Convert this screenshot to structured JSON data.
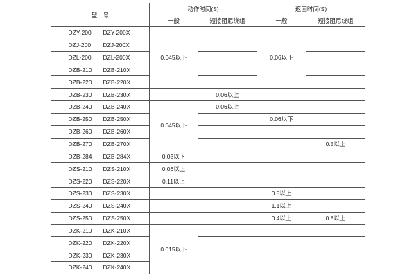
{
  "header": {
    "model": "型　号",
    "action_time": "动作时间(S)",
    "return_time": "返回时间(S)",
    "general": "一般",
    "short_winding": "短接阻尼绕组"
  },
  "rows": [
    {
      "model_a": "DZY-200",
      "model_b": "DZY-200X",
      "action_general": "0.045以下",
      "action_short": "",
      "return_general": "0.06以下",
      "return_short": ""
    },
    {
      "model_a": "DZJ-200",
      "model_b": "DZJ-200X",
      "action_short": "",
      "return_short": ""
    },
    {
      "model_a": "DZL-200",
      "model_b": "DZL-200X",
      "action_short": "",
      "return_short": ""
    },
    {
      "model_a": "DZB-210",
      "model_b": "DZB-210X",
      "action_short": "",
      "return_short": ""
    },
    {
      "model_a": "DZB-220",
      "model_b": "DZB-220X",
      "action_short": "",
      "return_short": ""
    },
    {
      "model_a": "DZB-230",
      "model_b": "DZB-230X",
      "action_general": "",
      "action_short": "0.06以上",
      "return_general": "",
      "return_short": ""
    },
    {
      "model_a": "DZB-240",
      "model_b": "DZB-240X",
      "action_general": "0.045以下",
      "action_short": "0.06以上",
      "return_general": "",
      "return_short": ""
    },
    {
      "model_a": "DZB-250",
      "model_b": "DZB-250X",
      "action_short": "",
      "return_general": "0.06以下",
      "return_short": ""
    },
    {
      "model_a": "DZB-260",
      "model_b": "DZB-260X",
      "action_short": "",
      "return_general": "",
      "return_short": ""
    },
    {
      "model_a": "DZB-270",
      "model_b": "DZB-270X",
      "action_short": "",
      "return_general": "",
      "return_short": "0.5以上"
    },
    {
      "model_a": "DZB-284",
      "model_b": "DZB-284X",
      "action_general": "0.03以下",
      "action_short": "",
      "return_general": "",
      "return_short": ""
    },
    {
      "model_a": "DZS-210",
      "model_b": "DZS-210X",
      "action_general": "0.06以上",
      "action_short": "",
      "return_general": "",
      "return_short": ""
    },
    {
      "model_a": "DZS-220",
      "model_b": "DZS-220X",
      "action_general": "0.11以上",
      "action_short": "",
      "return_general": "",
      "return_short": ""
    },
    {
      "model_a": "DZS-230",
      "model_b": "DZS-230X",
      "action_general": "",
      "action_short": "",
      "return_general": "0.5以上",
      "return_short": ""
    },
    {
      "model_a": "DZS-240",
      "model_b": "DZS-240X",
      "action_general": "",
      "action_short": "",
      "return_general": "1.1以上",
      "return_short": ""
    },
    {
      "model_a": "DZS-250",
      "model_b": "DZS-250X",
      "action_general": "",
      "action_short": "",
      "return_general": "0.4以上",
      "return_short": "0.8以上"
    },
    {
      "model_a": "DZK-210",
      "model_b": "DZK-210X",
      "action_general": "0.015以下",
      "action_short": "",
      "return_general": "",
      "return_short": ""
    },
    {
      "model_a": "DZK-220",
      "model_b": "DZK-220X",
      "action_short": "",
      "return_general": "",
      "return_short": ""
    },
    {
      "model_a": "DZK-230",
      "model_b": "DZK-230X"
    },
    {
      "model_a": "DZK-240",
      "model_b": "DZK-240X"
    }
  ]
}
